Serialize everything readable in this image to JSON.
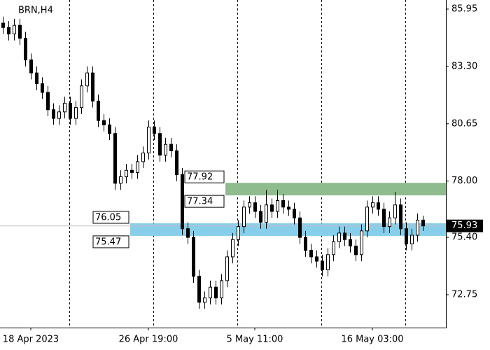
{
  "chart_data": {
    "type": "candlestick",
    "title": "BRN,H4",
    "categories": [
      null,
      null,
      null,
      null,
      null,
      "18 Apr 2023",
      null,
      null,
      null,
      null,
      null,
      null,
      null,
      null,
      null,
      null,
      null,
      null,
      null,
      null,
      null,
      null,
      null,
      null,
      null,
      null,
      "26 Apr 19:00",
      null,
      null,
      null,
      null,
      null,
      null,
      null,
      null,
      null,
      null,
      null,
      null,
      null,
      null,
      null,
      null,
      null,
      null,
      "5 May 11:00",
      null,
      null,
      null,
      null,
      null,
      null,
      null,
      null,
      null,
      null,
      null,
      null,
      null,
      null,
      null,
      null,
      null,
      null,
      null,
      null,
      "16 May 03:00",
      null,
      null,
      null,
      null,
      null,
      null,
      null,
      null,
      null
    ],
    "open": [
      85.3,
      85.1,
      84.8,
      85.2,
      84.6,
      83.6,
      83.0,
      82.5,
      82.1,
      81.3,
      80.9,
      81.2,
      81.6,
      80.9,
      81.4,
      82.4,
      83.0,
      81.7,
      80.8,
      80.6,
      80.2,
      77.9,
      78.2,
      78.5,
      78.4,
      78.9,
      79.3,
      80.5,
      80.2,
      79.2,
      79.7,
      79.4,
      78.3,
      75.8,
      75.4,
      73.6,
      72.4,
      72.6,
      73.1,
      72.6,
      73.4,
      74.5,
      75.3,
      75.9,
      76.8,
      77.0,
      76.6,
      76.1,
      76.9,
      76.6,
      77.1,
      76.8,
      76.7,
      76.3,
      75.4,
      74.8,
      74.5,
      74.3,
      73.9,
      74.6,
      75.2,
      75.6,
      75.3,
      75.0,
      74.6,
      75.7,
      76.8,
      77.0,
      76.7,
      75.9,
      76.3,
      76.9,
      75.8,
      75.1,
      75.5,
      76.2
    ],
    "high": [
      85.6,
      85.4,
      85.5,
      85.5,
      84.9,
      83.9,
      83.3,
      82.8,
      82.4,
      81.6,
      81.5,
      81.9,
      81.9,
      81.7,
      82.7,
      83.3,
      83.3,
      82.0,
      81.1,
      80.9,
      80.5,
      78.5,
      78.8,
      78.8,
      79.2,
      79.6,
      80.8,
      80.8,
      80.5,
      80.0,
      80.0,
      79.7,
      78.6,
      76.1,
      75.7,
      73.9,
      72.9,
      73.4,
      73.4,
      73.7,
      74.8,
      75.6,
      76.2,
      77.1,
      77.3,
      77.3,
      76.9,
      77.6,
      77.2,
      77.6,
      77.4,
      77.1,
      77.0,
      76.6,
      75.7,
      75.1,
      74.8,
      74.6,
      74.9,
      75.5,
      75.9,
      75.9,
      75.6,
      75.3,
      76.0,
      77.1,
      77.3,
      77.3,
      77.0,
      76.6,
      77.5,
      77.2,
      76.1,
      75.8,
      76.5,
      76.4
    ],
    "low": [
      84.8,
      84.5,
      84.5,
      84.3,
      83.3,
      82.7,
      82.2,
      81.8,
      81.0,
      80.6,
      80.6,
      80.9,
      80.6,
      80.6,
      81.1,
      82.1,
      81.4,
      80.5,
      80.3,
      79.9,
      77.6,
      77.6,
      77.9,
      78.1,
      78.1,
      78.6,
      79.0,
      79.9,
      78.9,
      78.9,
      79.1,
      78.0,
      75.5,
      75.1,
      73.3,
      72.1,
      72.1,
      72.3,
      72.3,
      72.3,
      73.1,
      74.2,
      75.0,
      75.6,
      76.5,
      76.3,
      75.8,
      75.8,
      76.3,
      76.3,
      76.5,
      76.4,
      76.0,
      75.1,
      74.5,
      74.2,
      74.0,
      73.6,
      73.6,
      74.3,
      74.9,
      75.0,
      74.7,
      74.3,
      74.3,
      75.4,
      76.5,
      76.4,
      75.6,
      75.6,
      76.0,
      75.5,
      74.8,
      74.8,
      75.2,
      75.7
    ],
    "close": [
      85.1,
      84.8,
      85.2,
      84.6,
      83.6,
      83.0,
      82.5,
      82.1,
      81.3,
      80.9,
      81.2,
      81.6,
      80.9,
      81.4,
      82.4,
      83.0,
      81.7,
      80.8,
      80.6,
      80.2,
      77.9,
      78.2,
      78.5,
      78.4,
      78.9,
      79.3,
      80.5,
      80.2,
      79.2,
      79.7,
      79.4,
      78.3,
      75.8,
      75.4,
      73.6,
      72.4,
      72.6,
      73.1,
      72.6,
      73.4,
      74.5,
      75.3,
      75.9,
      76.8,
      77.0,
      76.6,
      76.1,
      76.9,
      76.6,
      77.1,
      76.8,
      76.7,
      76.3,
      75.4,
      74.8,
      74.5,
      74.3,
      73.9,
      74.6,
      75.2,
      75.6,
      75.3,
      75.0,
      74.6,
      75.7,
      76.8,
      77.0,
      76.7,
      75.9,
      76.3,
      76.9,
      75.8,
      75.1,
      75.5,
      76.2,
      75.93
    ],
    "ylim": [
      71.23,
      86.37
    ],
    "yticks": [
      85.95,
      {
        "value": 83.3,
        "label": "83.30"
      },
      80.65,
      {
        "value": 78,
        "label": "78.00"
      },
      {
        "value": 75.4,
        "label": "75.40"
      },
      72.75
    ],
    "current_price": 75.93,
    "zones": [
      {
        "high": 77.92,
        "low": 77.34,
        "color": "#8fbc8f"
      },
      {
        "high": 76.05,
        "low": 75.47,
        "color": "#87ceeb"
      }
    ],
    "color": "#000000"
  }
}
